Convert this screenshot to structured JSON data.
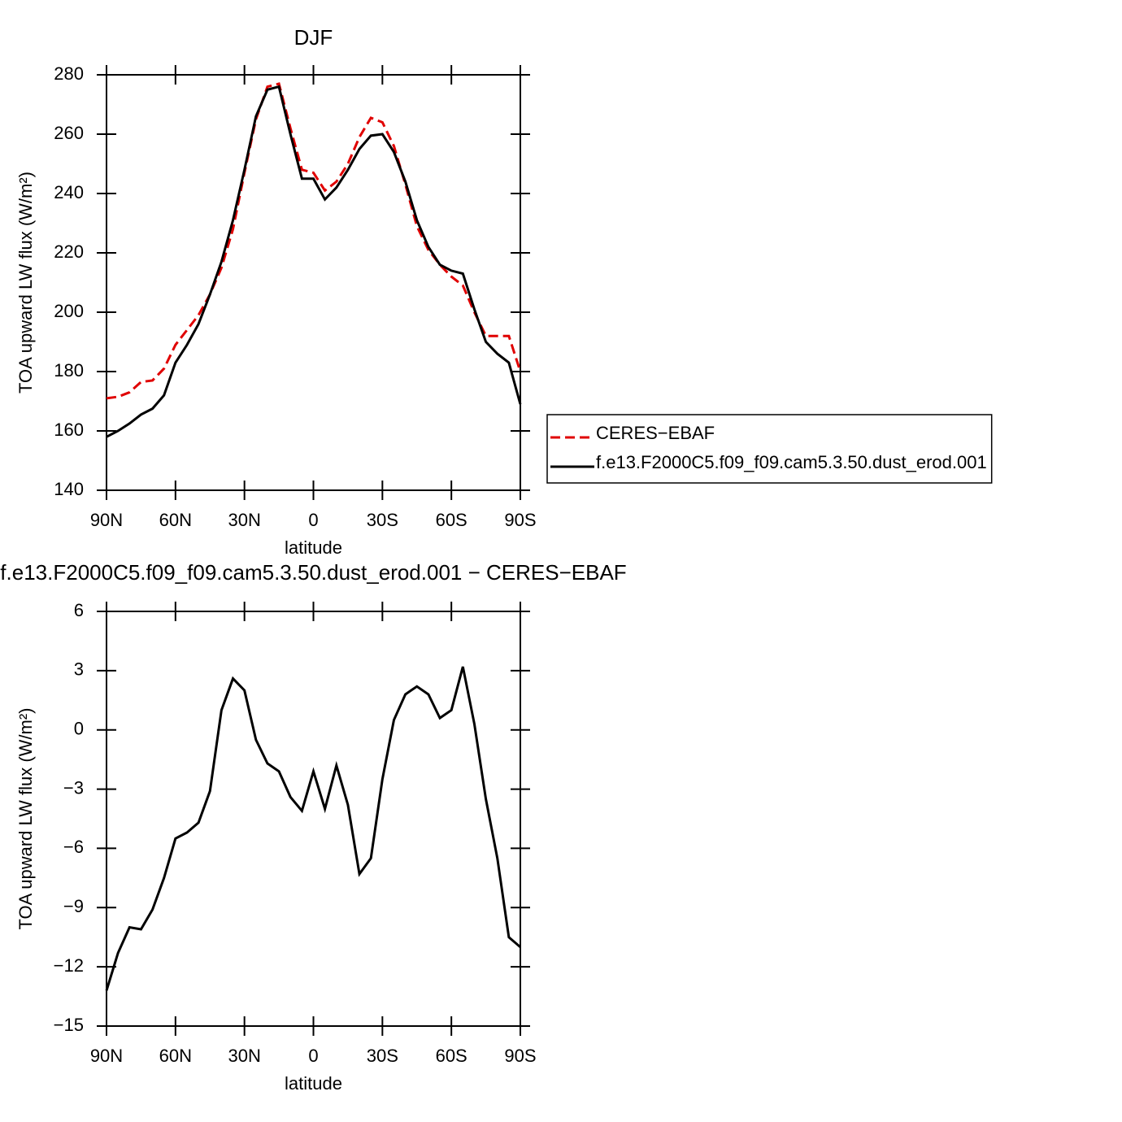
{
  "chart_data": [
    {
      "type": "line",
      "title": "DJF",
      "xlabel": "latitude",
      "ylabel": "TOA upward LW flux (W/m²)",
      "x": [
        90,
        85,
        80,
        75,
        70,
        65,
        60,
        55,
        50,
        45,
        40,
        35,
        30,
        25,
        20,
        15,
        10,
        5,
        0,
        -5,
        -10,
        -15,
        -20,
        -25,
        -30,
        -35,
        -40,
        -45,
        -50,
        -55,
        -60,
        -65,
        -70,
        -75,
        -80,
        -85,
        -90
      ],
      "xlim": [
        90,
        -90
      ],
      "xticks": [
        {
          "value": 90,
          "label": "90N"
        },
        {
          "value": 60,
          "label": "60N"
        },
        {
          "value": 30,
          "label": "30N"
        },
        0,
        {
          "value": -30,
          "label": "30S"
        },
        {
          "value": -60,
          "label": "60S"
        },
        {
          "value": -90,
          "label": "90S"
        }
      ],
      "ylim": [
        140,
        280
      ],
      "yticks": [
        140,
        160,
        180,
        200,
        220,
        240,
        260,
        280
      ],
      "legend": "right",
      "series": [
        {
          "name": "CERES−EBAF",
          "color": "#e00000",
          "dash": true,
          "values": [
            171,
            171.5,
            173,
            176.5,
            177,
            181,
            189,
            194,
            199,
            206,
            215,
            228,
            247,
            265,
            276,
            277,
            262,
            248,
            247,
            241,
            244,
            250,
            259,
            265.5,
            264,
            256,
            243,
            229,
            221,
            216,
            212,
            209,
            200,
            192,
            192,
            192,
            180
          ]
        },
        {
          "name": "f.e13.F2000C5.f09_f09.cam5.3.50.dust_erod.001",
          "color": "#000000",
          "dash": false,
          "values": [
            158,
            160,
            162.5,
            165.5,
            167.5,
            172,
            183,
            189,
            196,
            206,
            217,
            231,
            248,
            266,
            275,
            276,
            260,
            245,
            245,
            238,
            242,
            248,
            255,
            259.5,
            260,
            254,
            244,
            231,
            222,
            216,
            214,
            213,
            201,
            190,
            186,
            183,
            169
          ]
        }
      ]
    },
    {
      "type": "line",
      "title": "f.e13.F2000C5.f09_f09.cam5.3.50.dust_erod.001  −  CERES−EBAF",
      "xlabel": "latitude",
      "ylabel": "TOA upward LW flux (W/m²)",
      "x": [
        90,
        85,
        80,
        75,
        70,
        65,
        60,
        55,
        50,
        45,
        40,
        35,
        30,
        25,
        20,
        15,
        10,
        5,
        0,
        -5,
        -10,
        -15,
        -20,
        -25,
        -30,
        -35,
        -40,
        -45,
        -50,
        -55,
        -60,
        -65,
        -70,
        -75,
        -80,
        -85,
        -90
      ],
      "xlim": [
        90,
        -90
      ],
      "xticks": [
        {
          "value": 90,
          "label": "90N"
        },
        {
          "value": 60,
          "label": "60N"
        },
        {
          "value": 30,
          "label": "30N"
        },
        0,
        {
          "value": -30,
          "label": "30S"
        },
        {
          "value": -60,
          "label": "60S"
        },
        {
          "value": -90,
          "label": "90S"
        }
      ],
      "ylim": [
        -15,
        6
      ],
      "yticks": [
        {
          "value": -15,
          "label": "−15"
        },
        {
          "value": -12,
          "label": "−12"
        },
        {
          "value": -9,
          "label": "−9"
        },
        {
          "value": -6,
          "label": "−6"
        },
        {
          "value": -3,
          "label": "−3"
        },
        0,
        3,
        6
      ],
      "series": [
        {
          "color": "#000000",
          "dash": false,
          "values": [
            -13.2,
            -11.3,
            -10.0,
            -10.1,
            -9.1,
            -7.5,
            -5.5,
            -5.2,
            -4.7,
            -3.1,
            1.0,
            2.6,
            2.0,
            -0.5,
            -1.7,
            -2.1,
            -3.4,
            -4.1,
            -2.1,
            -4.0,
            -1.8,
            -3.8,
            -7.3,
            -6.5,
            -2.5,
            0.5,
            1.8,
            2.2,
            1.8,
            0.6,
            1.0,
            3.2,
            0.3,
            -3.5,
            -6.5,
            -10.5,
            -11.0
          ]
        }
      ]
    }
  ]
}
